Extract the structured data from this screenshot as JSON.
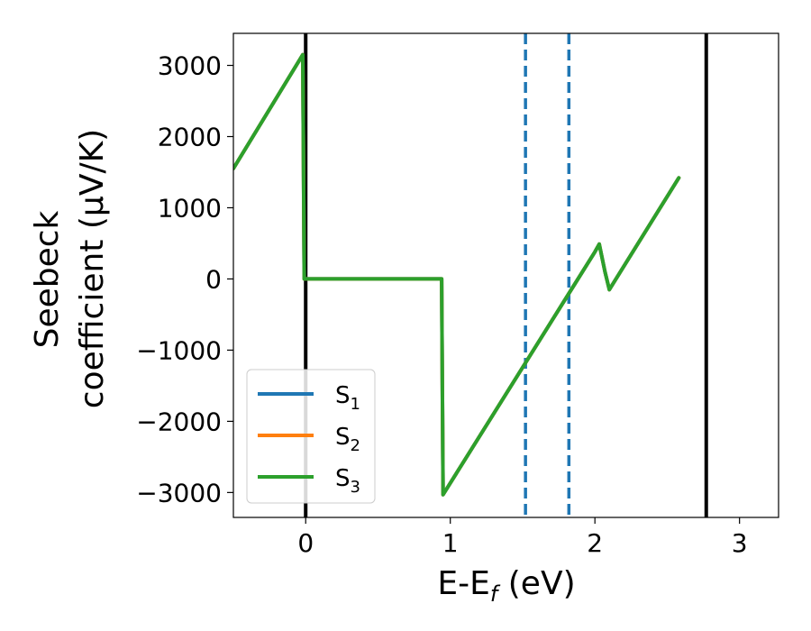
{
  "chart_data": {
    "type": "line",
    "xlabel": "E-E",
    "xlabel_sub": "f",
    "xlabel_unit": " (eV)",
    "ylabel_line1": "Seebeck",
    "ylabel_line2": "coefficient  (μV/K)",
    "xlim": [
      -0.5,
      3.27
    ],
    "ylim": [
      -3350,
      3450
    ],
    "x_ticks": [
      0,
      1,
      2,
      3
    ],
    "x_tick_labels": [
      "0",
      "1",
      "2",
      "3"
    ],
    "y_ticks": [
      -3000,
      -2000,
      -1000,
      0,
      1000,
      2000,
      3000
    ],
    "y_tick_labels": [
      "−3000",
      "−2000",
      "−1000",
      "0",
      "1000",
      "2000",
      "3000"
    ],
    "grid": false,
    "legend_position": "lower-left",
    "series": [
      {
        "name": "S",
        "sub": "1",
        "color": "#1f77b4",
        "x": [
          -0.5,
          -0.02,
          -0.01,
          0.94,
          0.95,
          2.0,
          2.03,
          2.07,
          2.1,
          2.58
        ],
        "values": [
          1550,
          3150,
          0,
          0,
          -3030,
          380,
          490,
          100,
          -150,
          1420
        ]
      },
      {
        "name": "S",
        "sub": "2",
        "color": "#ff7f0e",
        "x": [
          -0.5,
          -0.02,
          -0.01,
          0.94,
          0.95,
          2.0,
          2.03,
          2.07,
          2.1,
          2.58
        ],
        "values": [
          1550,
          3150,
          0,
          0,
          -3030,
          380,
          490,
          100,
          -150,
          1420
        ]
      },
      {
        "name": "S",
        "sub": "3",
        "color": "#2ca02c",
        "x": [
          -0.5,
          -0.02,
          -0.01,
          0.94,
          0.95,
          2.0,
          2.03,
          2.07,
          2.1,
          2.58
        ],
        "values": [
          1550,
          3150,
          0,
          0,
          -3030,
          380,
          490,
          100,
          -150,
          1420
        ]
      }
    ],
    "vertical_lines": [
      {
        "x": 0.0,
        "color": "#000000",
        "style": "solid"
      },
      {
        "x": 2.77,
        "color": "#000000",
        "style": "solid"
      },
      {
        "x": 1.52,
        "color": "#1f77b4",
        "style": "dashed"
      },
      {
        "x": 1.82,
        "color": "#1f77b4",
        "style": "dashed"
      }
    ]
  }
}
